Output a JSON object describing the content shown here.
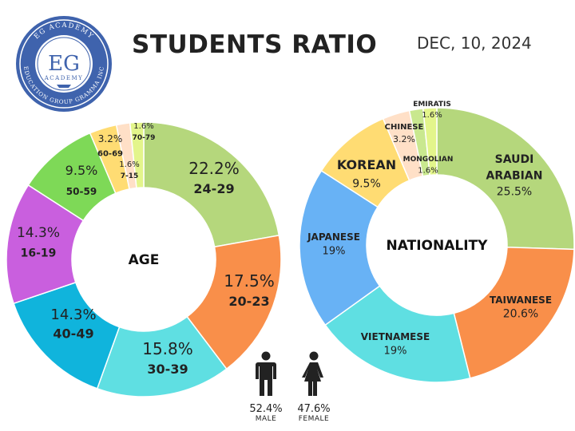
{
  "header": {
    "title": "STUDENTS RATIO",
    "date": "DEC, 10, 2024"
  },
  "logo": {
    "top_text": "EG ACADEMY",
    "monogram": "EG",
    "sub_text": "ACADEMY",
    "bottom_text": "EDUCATION GROUP GRAMMA INC"
  },
  "chart_data": [
    {
      "type": "pie",
      "title": "AGE",
      "donut": true,
      "slices": [
        {
          "label": "24-29",
          "value": 22.2,
          "value_label": "22.2%",
          "color": "#b5d77c"
        },
        {
          "label": "20-23",
          "value": 17.5,
          "value_label": "17.5%",
          "color": "#f98f4a"
        },
        {
          "label": "30-39",
          "value": 15.8,
          "value_label": "15.8%",
          "color": "#5fdfe2"
        },
        {
          "label": "40-49",
          "value": 14.3,
          "value_label": "14.3%",
          "color": "#10b4dc"
        },
        {
          "label": "16-19",
          "value": 14.3,
          "value_label": "14.3%",
          "color": "#c95fde"
        },
        {
          "label": "50-59",
          "value": 9.5,
          "value_label": "9.5%",
          "color": "#7ed957"
        },
        {
          "label": "60-69",
          "value": 3.2,
          "value_label": "3.2%",
          "color": "#ffdc73"
        },
        {
          "label": "7-15",
          "value": 1.6,
          "value_label": "1.6%",
          "color": "#ffe0c7"
        },
        {
          "label": "70-79",
          "value": 1.6,
          "value_label": "1.6%",
          "color": "#e3f58b"
        }
      ]
    },
    {
      "type": "pie",
      "title": "NATIONALITY",
      "donut": true,
      "slices": [
        {
          "label": "SAUDI ARABIAN",
          "value": 25.5,
          "value_label": "25.5%",
          "color": "#b5d77c"
        },
        {
          "label": "TAIWANESE",
          "value": 20.6,
          "value_label": "20.6%",
          "color": "#f98f4a"
        },
        {
          "label": "VIETNAMESE",
          "value": 19,
          "value_label": "19%",
          "color": "#5fdfe2"
        },
        {
          "label": "JAPANESE",
          "value": 19,
          "value_label": "19%",
          "color": "#68b2f5"
        },
        {
          "label": "KOREAN",
          "value": 9.5,
          "value_label": "9.5%",
          "color": "#ffdc73"
        },
        {
          "label": "CHINESE",
          "value": 3.2,
          "value_label": "3.2%",
          "color": "#ffe0c7"
        },
        {
          "label": "MONGOLIAN",
          "value": 1.6,
          "value_label": "1.6%",
          "color": "#c9e88f"
        },
        {
          "label": "EMIRATIS",
          "value": 1.6,
          "value_label": "1.6%",
          "color": "#e3f58b"
        }
      ]
    }
  ],
  "gender": {
    "male": {
      "value": 52.4,
      "pct": "52.4%",
      "label": "MALE",
      "icon": "male-person-icon"
    },
    "female": {
      "value": 47.6,
      "pct": "47.6%",
      "label": "FEMALE",
      "icon": "female-person-icon"
    }
  }
}
